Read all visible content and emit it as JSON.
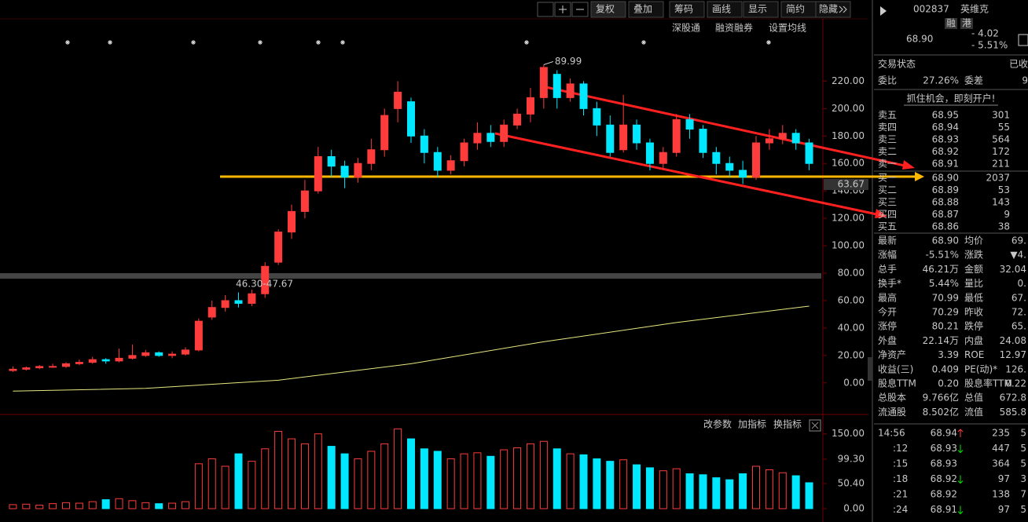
{
  "toolbar": {
    "buttons": [
      "复权",
      "叠加",
      "筹码",
      "画线",
      "显示",
      "简约",
      "隐藏"
    ],
    "sub": [
      "深股通",
      "融资融券",
      "设置均线"
    ],
    "volume_tools": [
      "改参数",
      "加指标",
      "换指标"
    ]
  },
  "chart": {
    "type": "candlestick",
    "candles": [
      [
        9,
        10,
        12,
        8
      ],
      [
        10,
        11,
        12,
        9
      ],
      [
        11,
        12,
        13,
        10
      ],
      [
        12,
        12,
        14,
        11
      ],
      [
        12,
        14,
        15,
        11
      ],
      [
        14,
        15,
        17,
        13
      ],
      [
        15,
        17,
        19,
        14
      ],
      [
        17,
        16,
        18,
        14
      ],
      [
        16,
        18,
        25,
        15
      ],
      [
        18,
        20,
        28,
        17
      ],
      [
        20,
        22,
        24,
        19
      ],
      [
        22,
        20,
        23,
        19
      ],
      [
        20,
        21,
        23,
        18
      ],
      [
        21,
        24,
        26,
        20
      ],
      [
        24,
        45,
        47,
        23
      ],
      [
        48,
        55,
        60,
        46
      ],
      [
        55,
        60,
        64,
        52
      ],
      [
        60,
        58,
        66,
        55
      ],
      [
        58,
        65,
        68,
        56
      ],
      [
        65,
        85,
        88,
        62
      ],
      [
        88,
        110,
        112,
        86
      ],
      [
        110,
        125,
        130,
        105
      ],
      [
        125,
        140,
        148,
        120
      ],
      [
        140,
        165,
        172,
        138
      ],
      [
        165,
        158,
        170,
        150
      ],
      [
        158,
        150,
        162,
        142
      ],
      [
        150,
        160,
        164,
        146
      ],
      [
        160,
        170,
        178,
        155
      ],
      [
        170,
        195,
        200,
        165
      ],
      [
        200,
        212,
        220,
        190
      ],
      [
        205,
        180,
        208,
        175
      ],
      [
        180,
        168,
        185,
        160
      ],
      [
        168,
        155,
        172,
        150
      ],
      [
        155,
        162,
        166,
        152
      ],
      [
        162,
        175,
        178,
        158
      ],
      [
        175,
        182,
        190,
        170
      ],
      [
        182,
        176,
        188,
        172
      ],
      [
        176,
        188,
        192,
        172
      ],
      [
        188,
        196,
        200,
        185
      ],
      [
        196,
        208,
        215,
        190
      ],
      [
        208,
        230,
        232,
        200
      ],
      [
        225,
        208,
        228,
        200
      ],
      [
        208,
        218,
        222,
        205
      ],
      [
        218,
        200,
        220,
        195
      ],
      [
        200,
        188,
        205,
        180
      ],
      [
        188,
        168,
        195,
        165
      ],
      [
        170,
        188,
        210,
        168
      ],
      [
        188,
        175,
        192,
        170
      ],
      [
        175,
        160,
        178,
        155
      ],
      [
        160,
        168,
        172,
        156
      ],
      [
        168,
        192,
        196,
        165
      ],
      [
        192,
        185,
        196,
        178
      ],
      [
        185,
        168,
        188,
        164
      ],
      [
        168,
        160,
        172,
        152
      ],
      [
        160,
        155,
        165,
        150
      ],
      [
        155,
        150,
        162,
        145
      ],
      [
        150,
        175,
        180,
        148
      ],
      [
        175,
        178,
        185,
        170
      ],
      [
        178,
        182,
        188,
        174
      ],
      [
        182,
        175,
        185,
        170
      ],
      [
        175,
        160,
        178,
        155
      ]
    ],
    "volume": [
      8,
      9,
      7,
      10,
      12,
      11,
      14,
      18,
      20,
      16,
      12,
      10,
      11,
      14,
      90,
      100,
      85,
      110,
      95,
      120,
      155,
      140,
      130,
      150,
      125,
      110,
      100,
      115,
      130,
      160,
      140,
      120,
      115,
      100,
      110,
      112,
      105,
      118,
      122,
      130,
      135,
      120,
      110,
      108,
      100,
      95,
      98,
      88,
      82,
      76,
      80,
      70,
      68,
      62,
      58,
      70,
      85,
      78,
      72,
      66,
      52
    ],
    "ma_long": {
      "index": [
        0,
        10,
        20,
        30,
        40,
        50,
        60
      ],
      "values": [
        -6,
        -4,
        2,
        14,
        30,
        44,
        56
      ]
    },
    "ylim": [
      -23,
      262
    ],
    "yticks": [
      {
        "value": 220,
        "label": "220.00"
      },
      {
        "value": 200,
        "label": "200.00"
      },
      {
        "value": 180,
        "label": "180.00"
      },
      {
        "value": 160,
        "label": "160.00"
      },
      {
        "value": 140,
        "label": "140.00"
      },
      {
        "value": 120,
        "label": "120.00"
      },
      {
        "value": 100,
        "label": "100.00"
      },
      {
        "value": 80,
        "label": "80.00"
      },
      {
        "value": 60,
        "label": "60.00"
      },
      {
        "value": 40,
        "label": "40.00"
      },
      {
        "value": 20,
        "label": "20.00"
      },
      {
        "value": 0,
        "label": "0.00"
      }
    ],
    "vlim": [
      0,
      170
    ],
    "vticks": [
      {
        "value": 150,
        "label": "150.00"
      },
      {
        "value": 99.3,
        "label": "99.30"
      },
      {
        "value": 50.4,
        "label": "50.40"
      },
      {
        "value": 0,
        "label": "0.00"
      }
    ],
    "high_label": "89.99",
    "band_label": "46.30-47.67",
    "price_marker": "63.67"
  },
  "quote": {
    "code": "002837",
    "name": "英维克",
    "tags": [
      "融",
      "港"
    ],
    "price": "68.90",
    "change": "- 4.02",
    "pct": "- 5.51%",
    "status": [
      "交易状态",
      "已收"
    ],
    "ratio": [
      "委比",
      "27.26%",
      "委差",
      "9"
    ],
    "banner": "抓住机会，即刻开户!",
    "asks": [
      [
        "卖五",
        "68.95",
        "301"
      ],
      [
        "卖四",
        "68.94",
        "55"
      ],
      [
        "卖三",
        "68.93",
        "564"
      ],
      [
        "卖二",
        "68.92",
        "172"
      ],
      [
        "卖一",
        "68.91",
        "211"
      ]
    ],
    "bids": [
      [
        "买一",
        "68.90",
        "2037"
      ],
      [
        "买二",
        "68.89",
        "53"
      ],
      [
        "买三",
        "68.88",
        "143"
      ],
      [
        "买四",
        "68.87",
        "9"
      ],
      [
        "买五",
        "68.86",
        "38"
      ]
    ],
    "stats": [
      [
        "最新",
        "68.90",
        "均价",
        "69."
      ],
      [
        "涨幅",
        "-5.51%",
        "涨跌",
        "▼4."
      ],
      [
        "总手",
        "46.21万",
        "金额",
        "32.04"
      ],
      [
        "换手*",
        "5.44%",
        "量比",
        "0."
      ],
      [
        "最高",
        "70.99",
        "最低",
        "67."
      ],
      [
        "今开",
        "70.29",
        "昨收",
        "72."
      ],
      [
        "涨停",
        "80.21",
        "跌停",
        "65."
      ],
      [
        "外盘",
        "22.14万",
        "内盘",
        "24.08"
      ],
      [
        "净资产",
        "3.39",
        "ROE",
        "12.97"
      ],
      [
        "收益(三)",
        "0.409",
        "PE(动)*",
        "126."
      ],
      [
        "股息TTM",
        "0.20",
        "股息率TTM",
        "0.22"
      ],
      [
        "总股本",
        "9.766亿",
        "总值",
        "672.8"
      ],
      [
        "流通股",
        "8.502亿",
        "流值",
        "585.8"
      ]
    ],
    "ticks": [
      [
        "14:56",
        "68.94",
        "235",
        "5"
      ],
      [
        ":12",
        "68.93",
        "447",
        "5"
      ],
      [
        ":15",
        "68.93",
        "364",
        "5"
      ],
      [
        ":18",
        "68.92",
        "97",
        "3"
      ],
      [
        ":21",
        "68.92",
        "138",
        "7"
      ],
      [
        ":24",
        "68.91",
        "97",
        "5"
      ]
    ]
  }
}
